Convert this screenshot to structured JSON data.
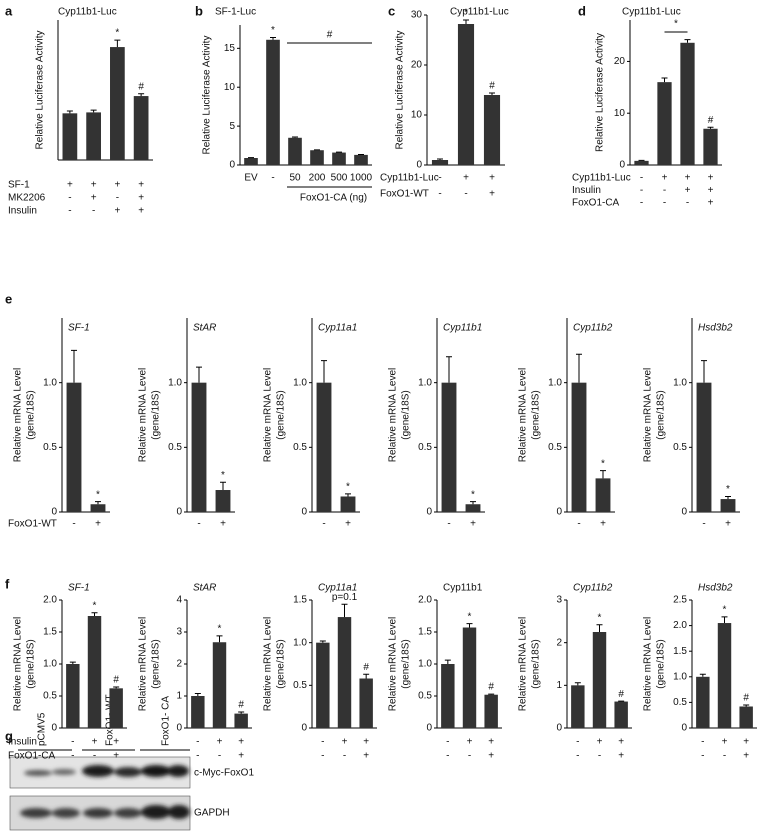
{
  "chart_data": [
    {
      "type": "bar",
      "panel": "a",
      "title": "Cyp11b1-Luc",
      "ylabel": "Relative Luciferase Activity",
      "ylim": [
        0,
        3
      ],
      "values": [
        1,
        1.02,
        2.42,
        1.37
      ],
      "errors": [
        0.05,
        0.05,
        0.15,
        0.05
      ],
      "marks": [
        null,
        null,
        "*",
        "#"
      ],
      "conditions": [
        {
          "name": "SF-1",
          "signs": [
            "+",
            "+",
            "+",
            "+"
          ]
        },
        {
          "name": "MK2206",
          "signs": [
            "-",
            "+",
            "-",
            "+"
          ]
        },
        {
          "name": "Insulin",
          "signs": [
            "-",
            "-",
            "+",
            "+"
          ]
        }
      ],
      "color": "#333333"
    },
    {
      "type": "bar",
      "panel": "b",
      "title": "SF-1-Luc",
      "ylabel": "Relative Luciferase Activity",
      "ylim": [
        0,
        18
      ],
      "yticks": [
        0,
        5,
        10,
        15
      ],
      "categories": [
        "EV",
        "-",
        "50",
        "200",
        "500",
        "1000"
      ],
      "xlabel": "FoxO1-CA (ng)",
      "values": [
        0.9,
        16.1,
        3.5,
        1.9,
        1.6,
        1.3
      ],
      "errors": [
        0.05,
        0.3,
        0.1,
        0.05,
        0.05,
        0.05
      ],
      "marks": [
        null,
        "*",
        null,
        null,
        null,
        null
      ],
      "bracket": "#",
      "color": "#333333"
    },
    {
      "type": "bar",
      "panel": "c",
      "title": "Cyp11b1-Luc",
      "ylabel": "Relative Luciferase Activity",
      "ylim": [
        0,
        30
      ],
      "yticks": [
        0,
        10,
        20,
        30
      ],
      "values": [
        1,
        28.2,
        14
      ],
      "errors": [
        0.2,
        0.8,
        0.4
      ],
      "marks": [
        null,
        "*",
        "#"
      ],
      "conditions": [
        {
          "name": "Cyp11b1-Luc",
          "signs": [
            "-",
            "+",
            "+"
          ]
        },
        {
          "name": "FoxO1-WT",
          "signs": [
            "-",
            "-",
            "+"
          ]
        }
      ],
      "color": "#333333"
    },
    {
      "type": "bar",
      "panel": "d",
      "title": "Cyp11b1-Luc",
      "ylabel": "Relative Luciferase Activity",
      "ylim": [
        0,
        28
      ],
      "yticks": [
        0,
        10,
        20
      ],
      "values": [
        0.8,
        16,
        23.6,
        7
      ],
      "errors": [
        0.1,
        0.8,
        0.6,
        0.3
      ],
      "marks": [
        null,
        null,
        null,
        "#"
      ],
      "bracket": "*",
      "conditions": [
        {
          "name": "Cyp11b1-Luc",
          "signs": [
            "-",
            "+",
            "+",
            "+"
          ]
        },
        {
          "name": "Insulin",
          "signs": [
            "-",
            "-",
            "+",
            "+"
          ]
        },
        {
          "name": "FoxO1-CA",
          "signs": [
            "-",
            "-",
            "-",
            "+"
          ]
        }
      ],
      "color": "#333333"
    },
    {
      "type": "bar",
      "panel": "e",
      "title": "SF-1",
      "italic_title": true,
      "ylabel": [
        "Relative mRNA Level",
        "(gene/18S)"
      ],
      "ylim": [
        0,
        1.5
      ],
      "yticks": [
        0,
        0.5,
        {
          "value": 1,
          "label": "1.0"
        }
      ],
      "values": [
        1,
        0.06
      ],
      "errors": [
        0.25,
        0.02
      ],
      "marks": [
        null,
        "*"
      ],
      "conditions": [
        {
          "name": "FoxO1-WT",
          "signs": [
            "-",
            "+"
          ]
        }
      ],
      "color": "#333333"
    },
    {
      "type": "bar",
      "title": "StAR",
      "italic_title": true,
      "ylabel": [
        "Relative mRNA Level",
        "(gene/18S)"
      ],
      "ylim": [
        0,
        1.5
      ],
      "yticks": [
        0,
        0.5,
        {
          "value": 1,
          "label": "1.0"
        }
      ],
      "values": [
        1,
        0.17
      ],
      "errors": [
        0.12,
        0.06
      ],
      "marks": [
        null,
        "*"
      ],
      "conditions": [
        {
          "signs": [
            "-",
            "+"
          ]
        }
      ],
      "color": "#333333"
    },
    {
      "type": "bar",
      "title": "Cyp11a1",
      "italic_title": true,
      "ylabel": [
        "Relative mRNA Level",
        "(gene/18S)"
      ],
      "ylim": [
        0,
        1.5
      ],
      "yticks": [
        0,
        0.5,
        {
          "value": 1,
          "label": "1.0"
        }
      ],
      "values": [
        1,
        0.12
      ],
      "errors": [
        0.17,
        0.02
      ],
      "marks": [
        null,
        "*"
      ],
      "conditions": [
        {
          "signs": [
            "-",
            "+"
          ]
        }
      ],
      "color": "#333333"
    },
    {
      "type": "bar",
      "title": "Cyp11b1",
      "italic_title": true,
      "ylabel": [
        "Relative mRNA Level",
        "(gene/18S)"
      ],
      "ylim": [
        0,
        1.5
      ],
      "yticks": [
        0,
        0.5,
        {
          "value": 1,
          "label": "1.0"
        }
      ],
      "values": [
        1,
        0.06
      ],
      "errors": [
        0.2,
        0.02
      ],
      "marks": [
        null,
        "*"
      ],
      "conditions": [
        {
          "signs": [
            "-",
            "+"
          ]
        }
      ],
      "color": "#333333"
    },
    {
      "type": "bar",
      "title": "Cyp11b2",
      "italic_title": true,
      "ylabel": [
        "Relative mRNA Level",
        "(gene/18S)"
      ],
      "ylim": [
        0,
        1.5
      ],
      "yticks": [
        0,
        0.5,
        {
          "value": 1,
          "label": "1.0"
        }
      ],
      "values": [
        1,
        0.26
      ],
      "errors": [
        0.22,
        0.06
      ],
      "marks": [
        null,
        "*"
      ],
      "conditions": [
        {
          "signs": [
            "-",
            "+"
          ]
        }
      ],
      "color": "#333333"
    },
    {
      "type": "bar",
      "title": "Hsd3b2",
      "italic_title": true,
      "ylabel": [
        "Relative mRNA Level",
        "(gene/18S)"
      ],
      "ylim": [
        0,
        1.5
      ],
      "yticks": [
        0,
        0.5,
        {
          "value": 1,
          "label": "1.0"
        }
      ],
      "values": [
        1,
        0.1
      ],
      "errors": [
        0.17,
        0.02
      ],
      "marks": [
        null,
        "*"
      ],
      "conditions": [
        {
          "signs": [
            "-",
            "+"
          ]
        }
      ],
      "color": "#333333"
    },
    {
      "type": "bar",
      "panel": "f",
      "title": "SF-1",
      "italic_title": true,
      "ylabel": [
        "Relative mRNA Level",
        "(gene/18S)"
      ],
      "ylim": [
        0,
        2
      ],
      "yticks": [
        0,
        0.5,
        {
          "value": 1,
          "label": "1.0"
        },
        1.5,
        {
          "value": 2,
          "label": "2.0"
        }
      ],
      "values": [
        1,
        1.75,
        0.62
      ],
      "errors": [
        0.03,
        0.05,
        0.02
      ],
      "marks": [
        null,
        "*",
        "#"
      ],
      "conditions": [
        {
          "name": "Insulin",
          "signs": [
            "-",
            "+",
            "+"
          ]
        },
        {
          "name": "FoxO1-CA",
          "signs": [
            "-",
            "-",
            "+"
          ]
        }
      ],
      "color": "#333333"
    },
    {
      "type": "bar",
      "title": "StAR",
      "italic_title": true,
      "ylabel": [
        "Relative mRNA Level",
        "(gene/18S)"
      ],
      "ylim": [
        0,
        4
      ],
      "yticks": [
        0,
        1,
        2,
        3,
        4
      ],
      "values": [
        1,
        2.68,
        0.45
      ],
      "errors": [
        0.08,
        0.2,
        0.05
      ],
      "marks": [
        null,
        "*",
        "#"
      ],
      "conditions": [
        {
          "signs": [
            "-",
            "+",
            "+"
          ]
        },
        {
          "signs": [
            "-",
            "-",
            "+"
          ]
        }
      ],
      "color": "#333333"
    },
    {
      "type": "bar",
      "title": "Cyp11a1",
      "italic_title": true,
      "ylabel": [
        "Relative mRNA Level",
        "(gene/18S)"
      ],
      "ylim": [
        0,
        1.5
      ],
      "yticks": [
        0,
        0.5,
        {
          "value": 1,
          "label": "1.0"
        },
        1.5
      ],
      "values": [
        1,
        1.3,
        0.58
      ],
      "errors": [
        0.02,
        0.15,
        0.05
      ],
      "marks": [
        null,
        "p=0.1",
        "#"
      ],
      "conditions": [
        {
          "signs": [
            "-",
            "+",
            "+"
          ]
        },
        {
          "signs": [
            "-",
            "-",
            "+"
          ]
        }
      ],
      "color": "#333333"
    },
    {
      "type": "bar",
      "title": "Cyp11b1",
      "italic_title": false,
      "ylabel": [
        "Relative mRNA Level",
        "(gene/18S)"
      ],
      "ylim": [
        0,
        2
      ],
      "yticks": [
        0,
        0.5,
        {
          "value": 1,
          "label": "1.0"
        },
        1.5,
        {
          "value": 2,
          "label": "2.0"
        }
      ],
      "values": [
        1,
        1.57,
        0.52
      ],
      "errors": [
        0.06,
        0.06,
        0.01
      ],
      "marks": [
        null,
        "*",
        "#"
      ],
      "conditions": [
        {
          "signs": [
            "-",
            "+",
            "+"
          ]
        },
        {
          "signs": [
            "-",
            "-",
            "+"
          ]
        }
      ],
      "color": "#333333"
    },
    {
      "type": "bar",
      "title": "Cyp11b2",
      "italic_title": true,
      "ylabel": [
        "Relative mRNA Level",
        "(gene/18S)"
      ],
      "ylim": [
        0,
        3
      ],
      "yticks": [
        0,
        1,
        2,
        3
      ],
      "values": [
        1,
        2.25,
        0.62
      ],
      "errors": [
        0.06,
        0.17,
        0.01
      ],
      "marks": [
        null,
        "*",
        "#"
      ],
      "conditions": [
        {
          "signs": [
            "-",
            "+",
            "+"
          ]
        },
        {
          "signs": [
            "-",
            "-",
            "+"
          ]
        }
      ],
      "color": "#333333"
    },
    {
      "type": "bar",
      "title": "Hsd3b2",
      "italic_title": true,
      "ylabel": [
        "Relative mRNA Level",
        "(gene/18S)"
      ],
      "ylim": [
        0,
        2.5
      ],
      "yticks": [
        0,
        0.5,
        {
          "value": 1,
          "label": "1.0"
        },
        1.5,
        {
          "value": 2,
          "label": "2.0"
        },
        2.5
      ],
      "values": [
        1,
        2.05,
        0.42
      ],
      "errors": [
        0.05,
        0.12,
        0.03
      ],
      "marks": [
        null,
        "*",
        "#"
      ],
      "conditions": [
        {
          "signs": [
            "-",
            "+",
            "+"
          ]
        },
        {
          "signs": [
            "-",
            "-",
            "+"
          ]
        }
      ],
      "color": "#333333"
    }
  ],
  "blot": {
    "panel": "g",
    "lanes": [
      "pCMV5",
      "FoxO1- WT",
      "FoxO1- CA"
    ],
    "bands": [
      "c-Myc-FoxO1",
      "GAPDH"
    ]
  }
}
